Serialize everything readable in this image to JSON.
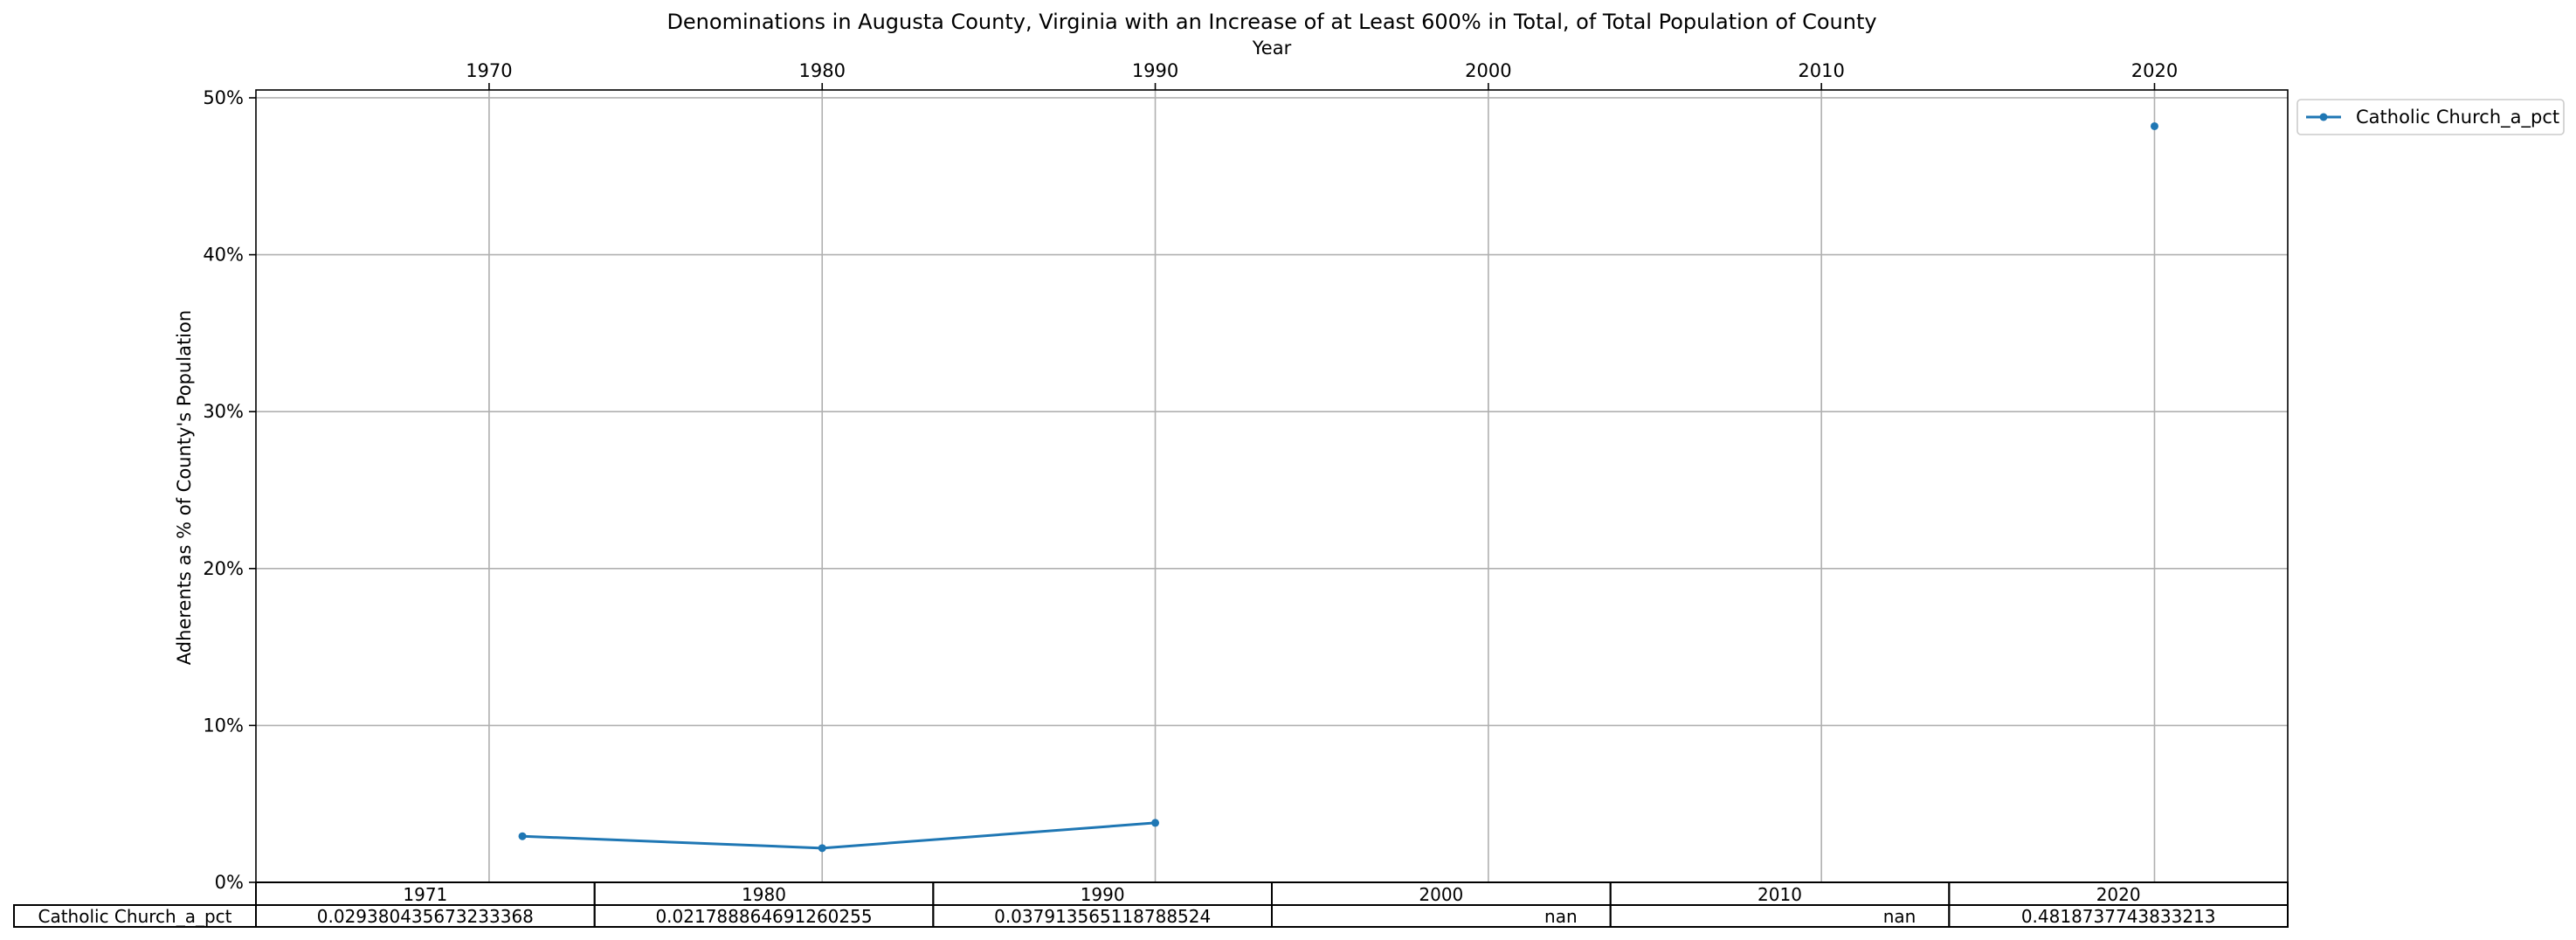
{
  "chart_data": {
    "type": "line",
    "title": "Denominations in Augusta County, Virginia with an Increase of at Least 600% in Total, of Total Population of County",
    "xlabel": "Year",
    "ylabel": "Adherents as % of County's Population",
    "xlim": [
      1963,
      2024
    ],
    "ylim": [
      0,
      50.5
    ],
    "x_ticks": [
      1970,
      1980,
      1990,
      2000,
      2010,
      2020
    ],
    "y_ticks": [
      0,
      10,
      20,
      30,
      40,
      50
    ],
    "y_tick_labels": [
      "0%",
      "10%",
      "20%",
      "30%",
      "40%",
      "50%"
    ],
    "x_axis_position": "top",
    "grid": true,
    "legend_position": "outside top-right",
    "x": [
      1971,
      1980,
      1990,
      2000,
      2010,
      2020
    ],
    "series": [
      {
        "name": "Catholic Church_a_pct",
        "color": "#1f77b4",
        "marker": "point",
        "values": [
          2.94,
          2.18,
          3.79,
          null,
          null,
          48.19
        ]
      }
    ],
    "table": {
      "col_labels": [
        "1971",
        "1980",
        "1990",
        "2000",
        "2010",
        "2020"
      ],
      "row_label": "Catholic Church_a_pct",
      "cells": [
        "0.029380435673233368",
        "0.021788864691260255",
        "0.03791356511878852​4",
        "nan",
        "nan",
        "0.4818737743833213"
      ]
    }
  }
}
